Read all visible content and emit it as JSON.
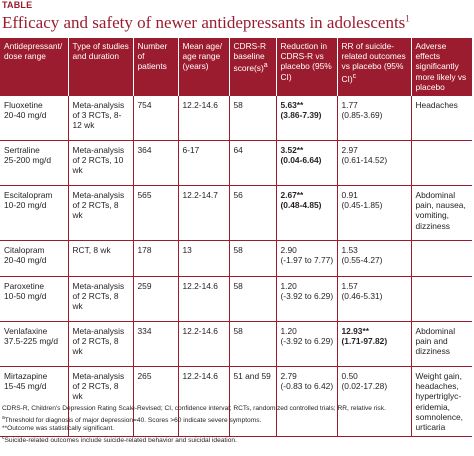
{
  "table_label": "TABLE",
  "title": "Efficacy and safety of newer antidepressants in adolescents",
  "title_ref": "1",
  "headers": [
    "Antidepressant/ dose range",
    "Type of studies and duration",
    "Number of patients",
    "Mean age/ age range (years)",
    "CDRS-R baseline score(s)",
    "Reduction in CDRS-R vs placebo (95% CI)",
    "RR of suicide-related outcomes vs placebo (95% CI)",
    "Adverse effects significantly more likely vs placebo"
  ],
  "header_marks": {
    "cdrs": "a",
    "rr": "c"
  },
  "rows": [
    {
      "drug": "Fluoxetine",
      "dose": "20-40 mg/d",
      "study": "Meta-analysis of 3 RCTs, 8-12 wk",
      "n": "754",
      "age": "12.2-14.6",
      "cdrs": "58",
      "reduction": "5.63**",
      "reduction_ci": "(3.86-7.39)",
      "reduction_bold": true,
      "rr": "1.77",
      "rr_ci": "(0.85-3.69)",
      "rr_bold": false,
      "adverse": "Headaches"
    },
    {
      "drug": "Sertraline",
      "dose": "25-200 mg/d",
      "study": "Meta-analysis of 2 RCTs, 10 wk",
      "n": "364",
      "age": "6-17",
      "cdrs": "64",
      "reduction": "3.52**",
      "reduction_ci": "(0.04-6.64)",
      "reduction_bold": true,
      "rr": "2.97",
      "rr_ci": "(0.61-14.52)",
      "rr_bold": false,
      "adverse": ""
    },
    {
      "drug": "Escitalopram",
      "dose": "10-20 mg/d",
      "study": "Meta-analysis of 2 RCTs, 8 wk",
      "n": "565",
      "age": "12.2-14.7",
      "cdrs": "56",
      "reduction": "2.67**",
      "reduction_ci": "(0.48-4.85)",
      "reduction_bold": true,
      "rr": "0.91",
      "rr_ci": "(0.45-1.85)",
      "rr_bold": false,
      "adverse": "Abdominal pain, nausea, vomiting, dizziness"
    },
    {
      "drug": "Citalopram",
      "dose": "20-40 mg/d",
      "study": "RCT, 8 wk",
      "n": "178",
      "age": "13",
      "cdrs": "58",
      "reduction": "2.90",
      "reduction_ci": "(-1.97 to 7.77)",
      "reduction_bold": false,
      "rr": "1.53",
      "rr_ci": "(0.55-4.27)",
      "rr_bold": false,
      "adverse": ""
    },
    {
      "drug": "Paroxetine",
      "dose": "10-50 mg/d",
      "study": "Meta-analysis of 2 RCTs, 8 wk",
      "n": "259",
      "age": "12.2-14.6",
      "cdrs": "58",
      "reduction": "1.20",
      "reduction_ci": "(-3.92 to 6.29)",
      "reduction_bold": false,
      "rr": "1.57",
      "rr_ci": "(0.46-5.31)",
      "rr_bold": false,
      "adverse": ""
    },
    {
      "drug": "Venlafaxine",
      "dose": "37.5-225 mg/d",
      "study": "Meta-analysis of 2 RCTs, 8 wk",
      "n": "334",
      "age": "12.2-14.6",
      "cdrs": "58",
      "reduction": "1.20",
      "reduction_ci": "(-3.92 to 6.29)",
      "reduction_bold": false,
      "rr": "12.93**",
      "rr_ci": "(1.71-97.82)",
      "rr_bold": true,
      "adverse": "Abdominal pain and dizziness"
    },
    {
      "drug": "Mirtazapine",
      "dose": "15-45 mg/d",
      "study": "Meta-analysis of 2 RCTs, 8 wk",
      "n": "265",
      "age": "12.2-14.6",
      "cdrs": "51 and 59",
      "reduction": "2.79",
      "reduction_ci": "(-0.83 to 6.42)",
      "reduction_bold": false,
      "rr": "0.50",
      "rr_ci": "(0.02-17.28)",
      "rr_bold": false,
      "adverse": "Weight gain, headaches, hypertriglyc-eridemia, somnolence, urticaria"
    }
  ],
  "footnotes": {
    "abbrev": "CDRS-R, Children's Depression Rating Scale-Revised; CI, confidence interval; RCTs, randomized controlled trials; RR, relative risk.",
    "a_mark": "a",
    "a_text": "Threshold for diagnosis of major depression=40. Scores >60 indicate severe symptoms.",
    "b_text": "**Outcome was statistically significant.",
    "c_mark": "c",
    "c_text": "Suicide-related outcomes include suicide-related behavior and suicidal ideation."
  },
  "colors": {
    "accent": "#9b1c2e",
    "text": "#231f20"
  }
}
